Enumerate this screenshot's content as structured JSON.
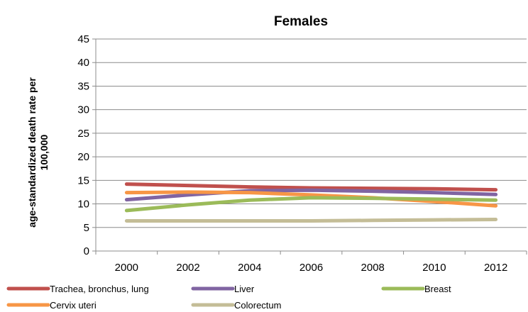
{
  "chart_data": {
    "type": "line",
    "title": "Females",
    "xlabel": "",
    "ylabel": [
      "age-standardized death rate per",
      "100,000"
    ],
    "x": [
      "2000",
      "2002",
      "2004",
      "2006",
      "2008",
      "2010",
      "2012"
    ],
    "ylim": [
      0,
      45
    ],
    "yticks": [
      "0",
      "5",
      "10",
      "15",
      "20",
      "25",
      "30",
      "35",
      "40",
      "45"
    ],
    "grid": "horizontal",
    "legend_position": "bottom",
    "series": [
      {
        "name": "Trachea, bronchus, lung",
        "color": "#c0504d",
        "values": [
          14.2,
          13.9,
          13.6,
          13.4,
          13.3,
          13.2,
          13.0
        ]
      },
      {
        "name": "Liver",
        "color": "#8064a2",
        "values": [
          10.9,
          11.9,
          12.8,
          12.9,
          12.7,
          12.4,
          12.0
        ]
      },
      {
        "name": "Breast",
        "color": "#9bbb59",
        "values": [
          8.6,
          9.8,
          10.8,
          11.3,
          11.2,
          11.0,
          10.8
        ]
      },
      {
        "name": "Cervix uteri",
        "color": "#f79646",
        "values": [
          12.4,
          12.5,
          12.4,
          11.9,
          11.3,
          10.5,
          9.6
        ]
      },
      {
        "name": "Colorectum",
        "color": "#c4bd97",
        "values": [
          6.4,
          6.4,
          6.4,
          6.4,
          6.5,
          6.6,
          6.7
        ]
      }
    ]
  }
}
